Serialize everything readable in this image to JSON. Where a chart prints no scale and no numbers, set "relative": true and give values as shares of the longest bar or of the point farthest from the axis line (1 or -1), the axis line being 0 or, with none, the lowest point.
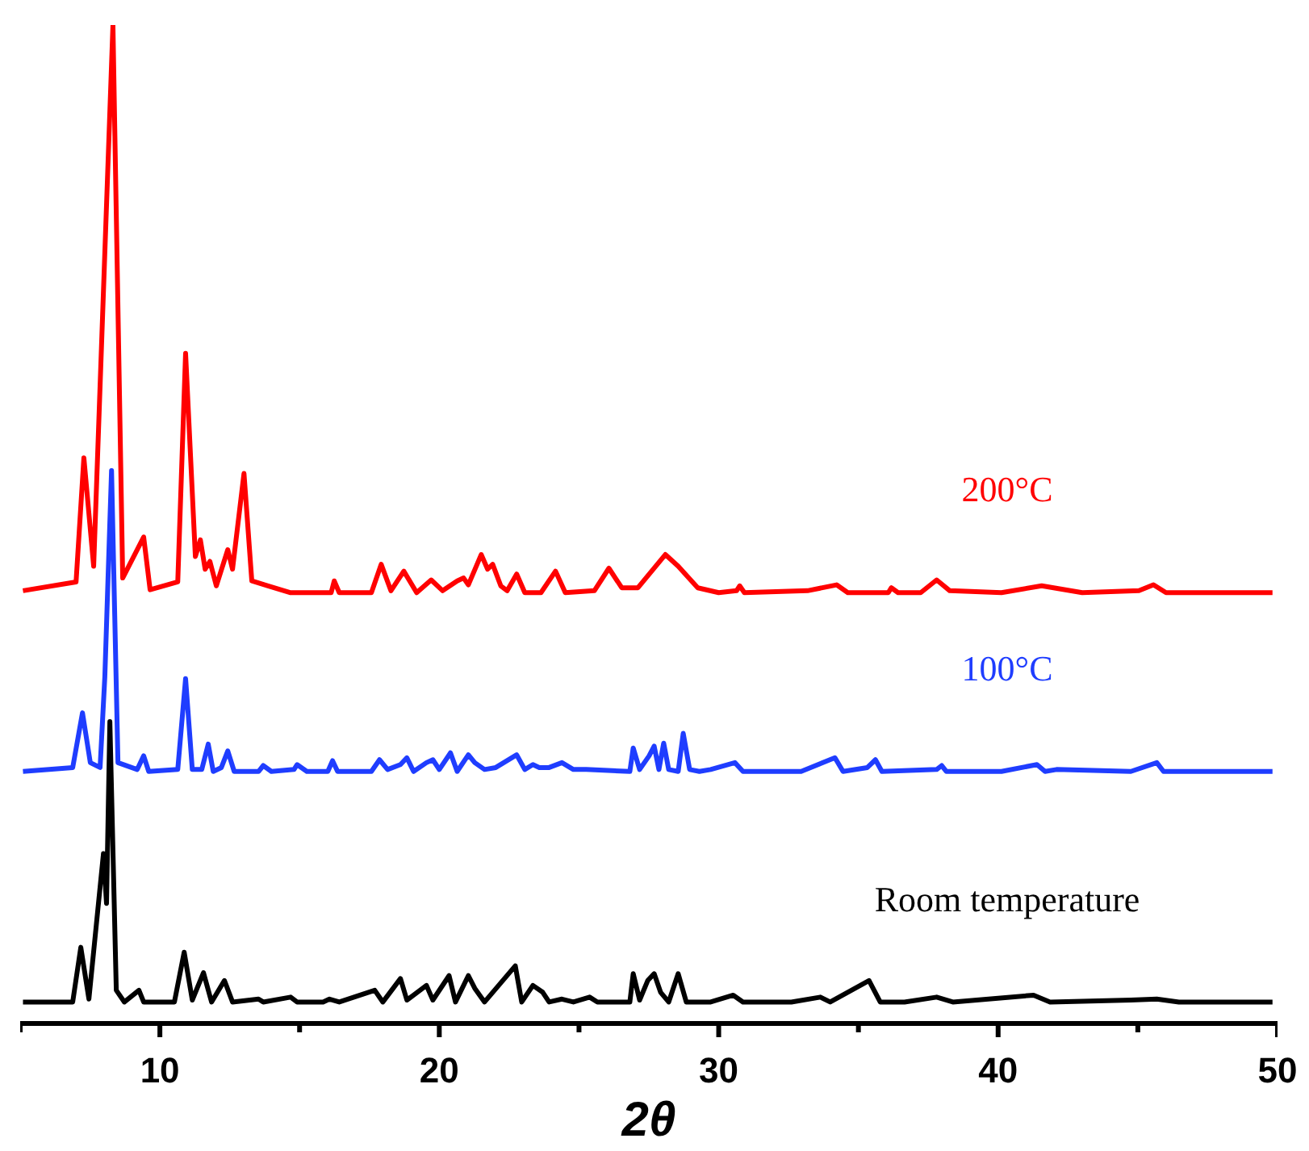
{
  "chart_data": {
    "type": "line",
    "relative": true,
    "xlabel": "2θ",
    "xlim": [
      5,
      50
    ],
    "xticks": [
      10,
      20,
      30,
      40,
      50
    ],
    "grid": false,
    "marker": "none",
    "line_style": "solid",
    "series": [
      {
        "name": "200°C",
        "color": "#ff0000",
        "x": [
          5.1,
          7.0,
          7.28,
          7.63,
          8.32,
          8.67,
          9.42,
          9.65,
          10.64,
          10.92,
          11.27,
          11.45,
          11.62,
          11.79,
          12.02,
          12.43,
          12.6,
          13.01,
          13.29,
          13.87,
          14.68,
          16.13,
          16.24,
          16.42,
          17.57,
          17.92,
          18.27,
          18.73,
          19.19,
          19.71,
          20.12,
          20.64,
          20.87,
          21.04,
          21.5,
          21.73,
          21.91,
          22.2,
          22.43,
          22.77,
          23.06,
          23.64,
          24.16,
          24.51,
          25.55,
          26.07,
          26.53,
          27.11,
          28.09,
          28.55,
          29.25,
          30.0,
          30.64,
          30.75,
          30.92,
          33.18,
          34.22,
          34.62,
          36.07,
          36.18,
          36.42,
          37.23,
          37.8,
          38.27,
          40.12,
          41.56,
          43.01,
          45.04,
          45.56,
          46.01,
          49.82
        ],
        "values": [
          0.421,
          0.43,
          0.557,
          0.446,
          1.0,
          0.434,
          0.476,
          0.422,
          0.43,
          0.664,
          0.456,
          0.473,
          0.443,
          0.451,
          0.426,
          0.463,
          0.443,
          0.541,
          0.431,
          0.426,
          0.419,
          0.419,
          0.431,
          0.419,
          0.419,
          0.448,
          0.421,
          0.441,
          0.419,
          0.432,
          0.421,
          0.431,
          0.434,
          0.427,
          0.458,
          0.443,
          0.448,
          0.426,
          0.421,
          0.438,
          0.419,
          0.419,
          0.441,
          0.419,
          0.421,
          0.444,
          0.424,
          0.424,
          0.458,
          0.446,
          0.424,
          0.419,
          0.421,
          0.426,
          0.419,
          0.421,
          0.427,
          0.419,
          0.419,
          0.424,
          0.419,
          0.419,
          0.432,
          0.421,
          0.419,
          0.426,
          0.419,
          0.421,
          0.427,
          0.419,
          0.419
        ]
      },
      {
        "name": "100°C",
        "color": "#1f3dff",
        "x": [
          5.1,
          6.88,
          7.23,
          7.51,
          7.86,
          8.03,
          8.27,
          8.5,
          9.19,
          9.42,
          9.6,
          10.64,
          10.92,
          11.16,
          11.5,
          11.73,
          11.91,
          12.2,
          12.43,
          12.66,
          13.53,
          13.7,
          13.99,
          14.8,
          14.91,
          15.26,
          16.01,
          16.18,
          16.36,
          17.57,
          17.86,
          18.15,
          18.61,
          18.84,
          19.08,
          19.54,
          19.77,
          20.0,
          20.4,
          20.64,
          21.04,
          21.27,
          21.62,
          22.02,
          22.77,
          23.06,
          23.35,
          23.58,
          23.93,
          24.39,
          24.8,
          25.26,
          26.82,
          26.94,
          27.17,
          27.51,
          27.69,
          27.86,
          28.03,
          28.21,
          28.55,
          28.73,
          28.96,
          29.31,
          29.71,
          30.58,
          30.87,
          32.02,
          32.95,
          34.16,
          34.45,
          35.32,
          35.61,
          35.84,
          37.8,
          37.98,
          38.15,
          40.12,
          41.39,
          41.68,
          42.09,
          44.75,
          45.68,
          45.92,
          49.82
        ],
        "values": [
          0.236,
          0.24,
          0.296,
          0.245,
          0.24,
          0.333,
          0.544,
          0.245,
          0.238,
          0.252,
          0.236,
          0.238,
          0.331,
          0.238,
          0.238,
          0.264,
          0.236,
          0.24,
          0.257,
          0.236,
          0.236,
          0.242,
          0.236,
          0.238,
          0.243,
          0.236,
          0.236,
          0.247,
          0.236,
          0.236,
          0.248,
          0.238,
          0.243,
          0.25,
          0.236,
          0.245,
          0.248,
          0.238,
          0.255,
          0.236,
          0.253,
          0.245,
          0.238,
          0.24,
          0.253,
          0.238,
          0.243,
          0.24,
          0.24,
          0.245,
          0.238,
          0.238,
          0.236,
          0.26,
          0.238,
          0.252,
          0.262,
          0.238,
          0.265,
          0.238,
          0.236,
          0.275,
          0.238,
          0.236,
          0.238,
          0.245,
          0.236,
          0.236,
          0.236,
          0.25,
          0.236,
          0.24,
          0.248,
          0.236,
          0.238,
          0.242,
          0.236,
          0.236,
          0.243,
          0.236,
          0.238,
          0.236,
          0.245,
          0.236,
          0.236
        ]
      },
      {
        "name": "Room temperature",
        "color": "#000000",
        "x": [
          5.1,
          6.88,
          7.17,
          7.46,
          7.98,
          8.09,
          8.21,
          8.44,
          8.73,
          9.25,
          9.42,
          10.52,
          10.87,
          11.16,
          11.56,
          11.85,
          12.31,
          12.6,
          13.53,
          13.7,
          14.68,
          14.91,
          15.84,
          16.07,
          16.42,
          17.69,
          17.98,
          18.61,
          18.84,
          19.54,
          19.77,
          20.35,
          20.58,
          21.04,
          21.27,
          21.62,
          22.72,
          22.95,
          23.35,
          23.7,
          23.93,
          24.39,
          24.8,
          25.38,
          25.66,
          26.82,
          26.94,
          27.17,
          27.46,
          27.69,
          27.92,
          28.21,
          28.55,
          28.84,
          29.71,
          30.52,
          30.87,
          32.6,
          33.64,
          33.99,
          35.38,
          35.78,
          36.65,
          37.8,
          38.38,
          41.27,
          41.86,
          44.75,
          45.68,
          46.47,
          49.82
        ],
        "values": [
          0,
          0,
          0.056,
          0.003,
          0.152,
          0.101,
          0.287,
          0.012,
          0,
          0.012,
          0,
          0,
          0.051,
          0.002,
          0.03,
          0,
          0.022,
          0,
          0.003,
          0,
          0.005,
          0,
          0,
          0.003,
          0,
          0.012,
          0,
          0.024,
          0.002,
          0.017,
          0.002,
          0.027,
          0,
          0.027,
          0.014,
          0,
          0.037,
          0,
          0.017,
          0.01,
          0,
          0.003,
          0,
          0.005,
          0,
          0,
          0.029,
          0.002,
          0.022,
          0.029,
          0.01,
          0,
          0.029,
          0,
          0,
          0.007,
          0,
          0,
          0.005,
          0,
          0.022,
          0,
          0,
          0.005,
          0,
          0.007,
          0,
          0.002,
          0.003,
          0,
          0
        ]
      }
    ]
  }
}
